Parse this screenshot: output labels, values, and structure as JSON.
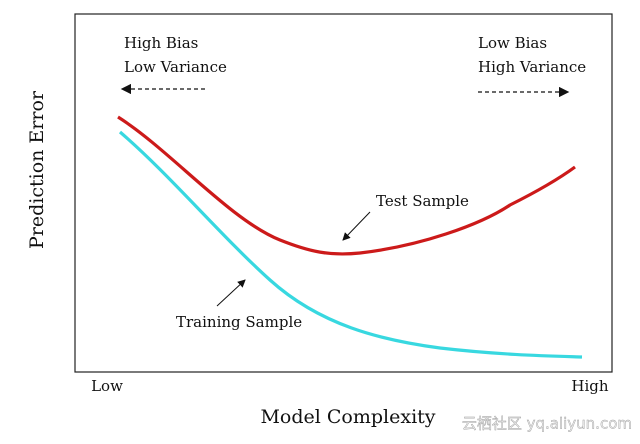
{
  "axes": {
    "y_label": "Prediction Error",
    "x_label": "Model Complexity",
    "x_low": "Low",
    "x_high": "High"
  },
  "annotations": {
    "left_line1": "High Bias",
    "left_line2": "Low Variance",
    "right_line1": "Low Bias",
    "right_line2": "High Variance",
    "test_curve": "Test Sample",
    "training_curve": "Training Sample"
  },
  "watermark": "云栖社区 yq.aliyun.com"
}
